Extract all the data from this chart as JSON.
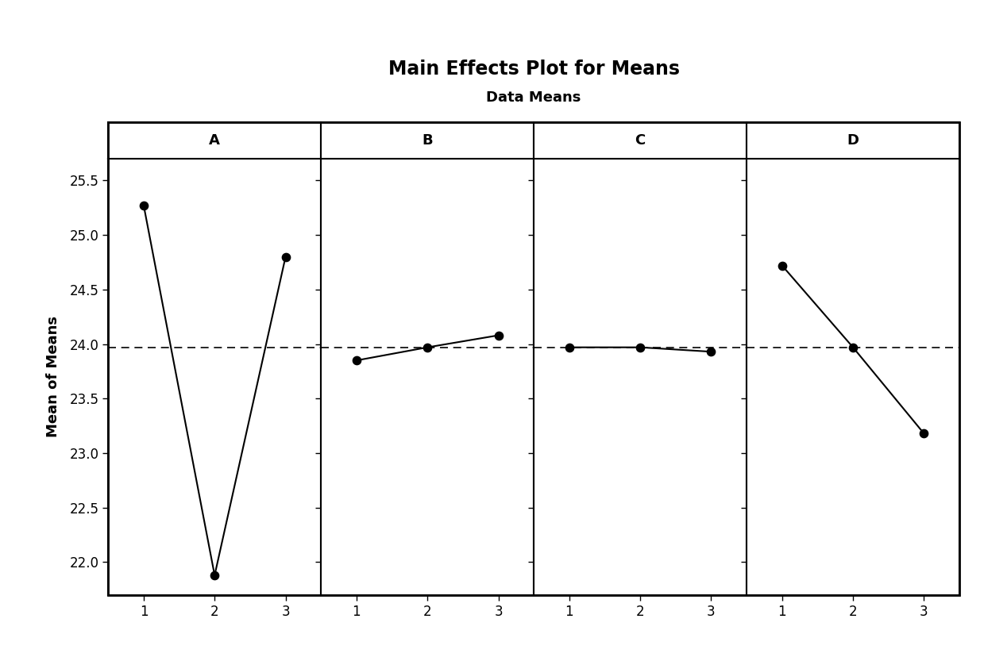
{
  "title": "Main Effects Plot for Means",
  "subtitle": "Data Means",
  "ylabel": "Mean of Means",
  "panels": [
    "A",
    "B",
    "C",
    "D"
  ],
  "x_values": [
    1,
    2,
    3
  ],
  "panel_data": {
    "A": [
      25.27,
      21.88,
      24.8
    ],
    "B": [
      23.85,
      23.97,
      24.08
    ],
    "C": [
      23.97,
      23.97,
      23.93
    ],
    "D": [
      24.72,
      23.97,
      23.18
    ]
  },
  "grand_mean": 23.965,
  "ylim": [
    21.7,
    25.7
  ],
  "yticks": [
    22.0,
    22.5,
    23.0,
    23.5,
    24.0,
    24.5,
    25.0,
    25.5
  ],
  "xticks": [
    1,
    2,
    3
  ],
  "line_color": "#000000",
  "dot_color": "#000000",
  "dashed_color": "#000000",
  "background_color": "#ffffff",
  "title_fontsize": 17,
  "subtitle_fontsize": 13,
  "label_fontsize": 13,
  "tick_fontsize": 12,
  "panel_label_fontsize": 13
}
